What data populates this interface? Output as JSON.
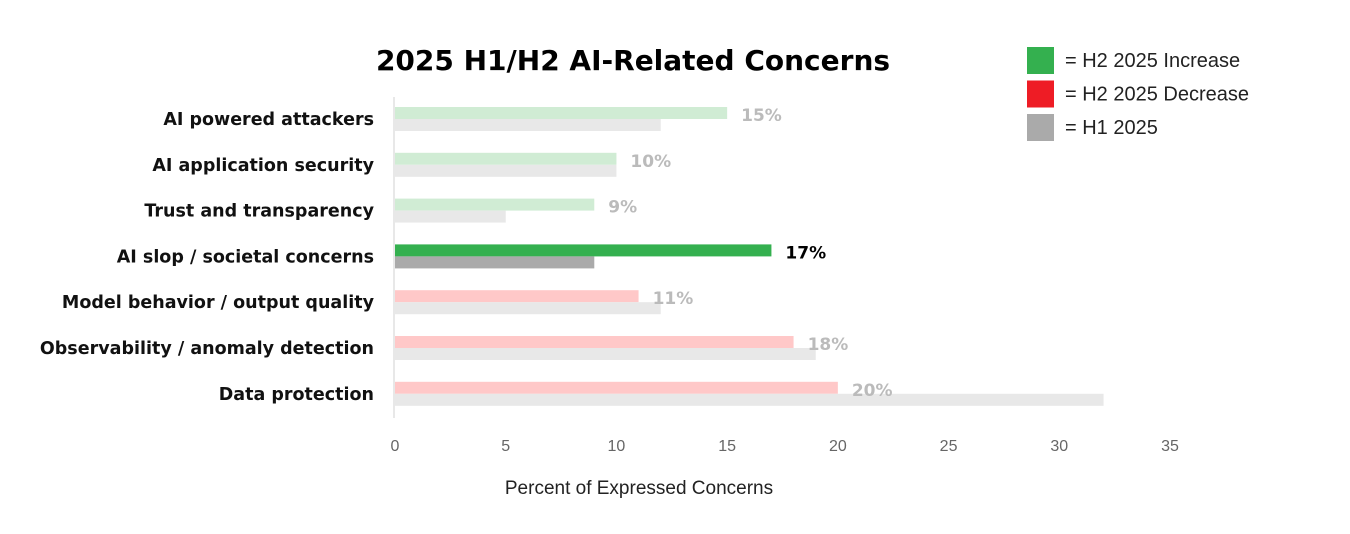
{
  "chart_data": {
    "type": "bar",
    "orientation": "horizontal",
    "title": "2025 H1/H2 AI-Related Concerns",
    "xlabel": "Percent of Expressed Concerns",
    "ylabel": "",
    "xlim": [
      0,
      35
    ],
    "xticks": [
      "0",
      "5",
      "10",
      "15",
      "20",
      "25",
      "30",
      "35"
    ],
    "grid": false,
    "legend_placement": "top-right",
    "categories": [
      "AI powered attackers",
      "AI application security",
      "Trust and transparency",
      "AI slop / societal concerns",
      "Model behavior / output quality",
      "Observability / anomaly detection",
      "Data protection"
    ],
    "series": [
      {
        "name": "H2 2025",
        "values": [
          15,
          10,
          9,
          17,
          11,
          18,
          20
        ]
      },
      {
        "name": "H1 2025",
        "values": [
          12,
          10,
          5,
          9,
          12,
          19,
          32
        ]
      }
    ],
    "data_labels": [
      "15%",
      "10%",
      "9%",
      "17%",
      "11%",
      "18%",
      "20%"
    ],
    "direction": [
      "increase",
      "increase",
      "increase",
      "increase",
      "decrease",
      "decrease",
      "decrease"
    ],
    "highlighted": [
      false,
      false,
      false,
      true,
      false,
      false,
      false
    ],
    "legend": [
      {
        "label": "= H2 2025 Increase",
        "color": "#34b04f"
      },
      {
        "label": "= H2 2025 Decrease",
        "color": "#ee1c25"
      },
      {
        "label": "= H1 2025",
        "color": "#aaaaaa"
      }
    ],
    "colors": {
      "increase": "#34b04f",
      "increase_faded": "#d0ecd4",
      "decrease": "#ee1c25",
      "decrease_faded": "#ffc8c8",
      "h1": "#aaaaaa",
      "h1_faded": "#e8e8e8",
      "label_faded": "#bbbbbb",
      "label_highlight": "#000000"
    }
  }
}
